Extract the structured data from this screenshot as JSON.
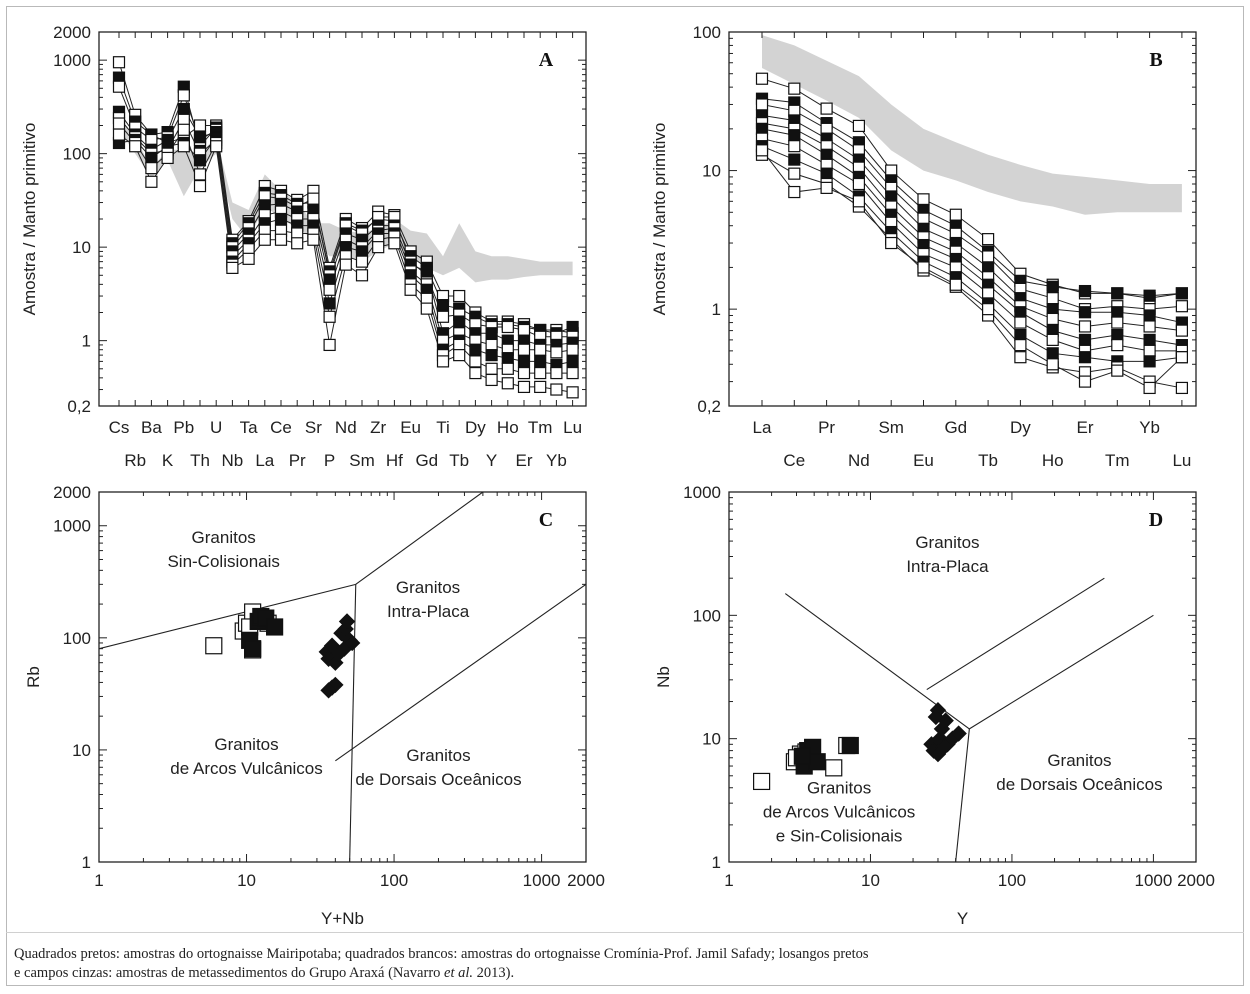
{
  "caption": {
    "line1": "Quadrados pretos: amostras do ortognaisse Mairipotaba; quadrados brancos: amostras do ortognaisse Cromínia-Prof. Jamil Safady; losangos pretos",
    "line2_pre": "e campos cinzas: amostras de metassedimentos do Grupo Araxá (Navarro ",
    "line2_italic": "et al.",
    "line2_post": " 2013)."
  },
  "colors": {
    "field": "#d3d3d3",
    "black_marker": "#111111",
    "white_marker": "#ffffff",
    "line": "#222222"
  },
  "chart_data": [
    {
      "panel": "A",
      "type": "line",
      "ylabel": "Amostra / Manto primitivo",
      "yscale": "log",
      "ylim": [
        0.2,
        2000
      ],
      "yticks": [
        "0,2",
        "1",
        "10",
        "100",
        "1000",
        "2000"
      ],
      "ytick_values": [
        0.2,
        1,
        10,
        100,
        1000,
        2000
      ],
      "categories": [
        "Cs",
        "Rb",
        "Ba",
        "K",
        "Pb",
        "Th",
        "U",
        "Nb",
        "Ta",
        "La",
        "Ce",
        "Pr",
        "Sr",
        "P",
        "Nd",
        "Sm",
        "Zr",
        "Hf",
        "Eu",
        "Gd",
        "Ti",
        "Tb",
        "Dy",
        "Y",
        "Ho",
        "Er",
        "Tm",
        "Yb",
        "Lu"
      ],
      "field_upper": [
        250,
        150,
        70,
        110,
        110,
        100,
        150,
        30,
        25,
        60,
        40,
        30,
        18,
        18,
        15,
        14,
        16,
        20,
        15,
        14,
        8,
        18,
        9,
        8,
        8,
        7.5,
        7,
        7,
        7
      ],
      "field_lower": [
        180,
        100,
        55,
        85,
        35,
        70,
        100,
        20,
        12,
        28,
        20,
        16,
        12,
        8,
        8,
        7,
        9,
        11,
        8,
        6,
        5,
        6,
        4.2,
        4.5,
        4.5,
        4.8,
        5,
        5,
        5
      ],
      "series": [
        {
          "marker": "white",
          "values": [
            950,
            260,
            160,
            130,
            150,
            200,
            200,
            12,
            19,
            45,
            40,
            32,
            40,
            6,
            20,
            16,
            24,
            22,
            9,
            7,
            3,
            3,
            2,
            1.6,
            1.6,
            1.5,
            1.3,
            1.3,
            1.2
          ]
        },
        {
          "marker": "black",
          "values": [
            650,
            220,
            160,
            170,
            520,
            120,
            190,
            11,
            18,
            38,
            36,
            29,
            30,
            5.5,
            18,
            15,
            20,
            19,
            8,
            6,
            2.4,
            2.2,
            1.8,
            1.5,
            1.5,
            1.4,
            1.3,
            1.2,
            1.4
          ]
        },
        {
          "marker": "white",
          "values": [
            520,
            190,
            140,
            150,
            420,
            140,
            180,
            10,
            16,
            35,
            33,
            27,
            33,
            5,
            17,
            14,
            21,
            21,
            7,
            5,
            1.8,
            1.9,
            1.5,
            1.4,
            1.4,
            1.3,
            1.1,
            1.1,
            1.1
          ]
        },
        {
          "marker": "black",
          "values": [
            280,
            160,
            110,
            140,
            300,
            150,
            170,
            9,
            14,
            28,
            29,
            24,
            24,
            4.5,
            14,
            12,
            17,
            17,
            6.5,
            5.5,
            1.2,
            1.6,
            1.2,
            1.2,
            1.0,
            1.0,
            0.9,
            0.9,
            0.95
          ]
        },
        {
          "marker": "white",
          "values": [
            240,
            150,
            100,
            110,
            230,
            100,
            140,
            8,
            12,
            22,
            24,
            20,
            20,
            3.5,
            12,
            10,
            15,
            16,
            5.5,
            4,
            1.0,
            1.2,
            1.0,
            0.9,
            0.8,
            0.8,
            0.8,
            0.75,
            0.8
          ]
        },
        {
          "marker": "black",
          "values": [
            130,
            140,
            90,
            120,
            130,
            85,
            150,
            7,
            11,
            18,
            20,
            17,
            17,
            2.5,
            10,
            9,
            14,
            14,
            5,
            3.5,
            0.8,
            1.0,
            0.8,
            0.7,
            0.65,
            0.6,
            0.6,
            0.55,
            0.6
          ]
        },
        {
          "marker": "white",
          "values": [
            210,
            130,
            70,
            100,
            180,
            60,
            130,
            6.5,
            9.5,
            15,
            15,
            14,
            14,
            1.8,
            8,
            7,
            12,
            13,
            4,
            2.8,
            0.7,
            0.9,
            0.6,
            0.5,
            0.5,
            0.45,
            0.45,
            0.45,
            0.45
          ]
        },
        {
          "marker": "white",
          "values": [
            160,
            120,
            50,
            90,
            120,
            45,
            120,
            6,
            7.5,
            12,
            12,
            11,
            12,
            0.9,
            6.5,
            5,
            10,
            11,
            3.5,
            2.2,
            0.6,
            0.7,
            0.45,
            0.38,
            0.35,
            0.32,
            0.32,
            0.3,
            0.28
          ]
        }
      ]
    },
    {
      "panel": "B",
      "type": "line",
      "ylabel": "Amostra / Manto primitivo",
      "yscale": "log",
      "ylim": [
        0.2,
        100
      ],
      "yticks": [
        "0,2",
        "1",
        "10",
        "100"
      ],
      "ytick_values": [
        0.2,
        1,
        10,
        100
      ],
      "categories": [
        "La",
        "Ce",
        "Pr",
        "Nd",
        "Sm",
        "Eu",
        "Gd",
        "Tb",
        "Dy",
        "Ho",
        "Er",
        "Tm",
        "Yb",
        "Lu"
      ],
      "field_upper": [
        95,
        80,
        62,
        48,
        30,
        20,
        16,
        13,
        11,
        9.5,
        9,
        8.5,
        8,
        8
      ],
      "field_lower": [
        55,
        42,
        32,
        24,
        14,
        10,
        8.5,
        7,
        6,
        5.5,
        4.8,
        5,
        5,
        5
      ],
      "series": [
        {
          "marker": "white",
          "values": [
            46,
            39,
            28,
            21,
            10,
            6.2,
            4.8,
            3.2,
            1.8,
            1.5,
            1.3,
            1.3,
            1.2,
            1.3
          ]
        },
        {
          "marker": "black",
          "values": [
            33,
            31,
            22,
            16,
            8.5,
            5.2,
            4.0,
            2.6,
            1.6,
            1.45,
            1.35,
            1.3,
            1.25,
            1.3
          ]
        },
        {
          "marker": "white",
          "values": [
            30,
            27,
            20,
            14,
            7.5,
            4.5,
            3.5,
            2.4,
            1.4,
            1.2,
            1.0,
            1.05,
            1.0,
            1.05
          ]
        },
        {
          "marker": "black",
          "values": [
            25,
            23,
            17,
            12,
            6.5,
            3.8,
            3.0,
            2.0,
            1.2,
            1.0,
            0.95,
            0.95,
            0.9,
            0.8
          ]
        },
        {
          "marker": "white",
          "values": [
            22,
            20,
            15,
            10.5,
            5.5,
            3.3,
            2.6,
            1.7,
            1.05,
            0.85,
            0.75,
            0.8,
            0.75,
            0.7
          ]
        },
        {
          "marker": "black",
          "values": [
            20,
            18,
            13,
            9,
            4.8,
            2.9,
            2.3,
            1.5,
            0.95,
            0.7,
            0.6,
            0.65,
            0.6,
            0.55
          ]
        },
        {
          "marker": "white",
          "values": [
            17,
            15,
            11,
            8,
            4.2,
            2.5,
            2.0,
            1.3,
            0.8,
            0.6,
            0.5,
            0.55,
            0.5,
            0.5
          ]
        },
        {
          "marker": "black",
          "values": [
            15,
            12,
            9.5,
            6.5,
            3.6,
            2.2,
            1.7,
            1.1,
            0.65,
            0.48,
            0.45,
            0.42,
            0.42,
            0.45
          ]
        },
        {
          "marker": "white",
          "values": [
            13,
            9.5,
            8,
            5.5,
            3.2,
            1.9,
            1.45,
            0.9,
            0.45,
            0.38,
            0.35,
            0.38,
            0.3,
            0.27
          ]
        },
        {
          "marker": "white",
          "values": [
            14,
            7,
            7.5,
            6,
            3.0,
            2.0,
            1.5,
            1.0,
            0.55,
            0.4,
            0.3,
            0.36,
            0.27,
            0.45
          ]
        }
      ]
    },
    {
      "panel": "C",
      "type": "scatter",
      "xlabel": "Y+Nb",
      "ylabel": "Rb",
      "xscale": "log",
      "yscale": "log",
      "xlim": [
        1,
        2000
      ],
      "ylim": [
        1,
        2000
      ],
      "xticks": [
        "1",
        "10",
        "100",
        "1000",
        "2000"
      ],
      "xtick_values": [
        1,
        10,
        100,
        1000,
        2000
      ],
      "yticks": [
        "1",
        "10",
        "100",
        "1000",
        "2000"
      ],
      "ytick_values": [
        1,
        10,
        100,
        1000,
        2000
      ],
      "boundaries": [
        [
          [
            1,
            80
          ],
          [
            55,
            300
          ]
        ],
        [
          [
            55,
            300
          ],
          [
            50,
            1
          ]
        ],
        [
          [
            55,
            300
          ],
          [
            400,
            2000
          ]
        ],
        [
          [
            40,
            8
          ],
          [
            2000,
            300
          ]
        ]
      ],
      "field_labels": [
        {
          "lines": [
            "Granitos",
            "Sin-Colisionais"
          ],
          "x": 7,
          "y": 700
        },
        {
          "lines": [
            "Granitos",
            "Intra-Placa"
          ],
          "x": 170,
          "y": 250
        },
        {
          "lines": [
            "Granitos",
            "de Arcos Vulcânicos"
          ],
          "x": 10,
          "y": 10
        },
        {
          "lines": [
            "Granitos",
            "de Dorsais Oceânicos"
          ],
          "x": 200,
          "y": 8
        }
      ],
      "series": [
        {
          "marker": "square-white",
          "points": [
            [
              6,
              85
            ],
            [
              9.5,
              115
            ],
            [
              10,
              135
            ],
            [
              11,
              170
            ],
            [
              11,
              78
            ],
            [
              14,
              135
            ],
            [
              10.5,
              125
            ]
          ]
        },
        {
          "marker": "square-black",
          "points": [
            [
              10.5,
              95
            ],
            [
              12,
              140
            ],
            [
              12.5,
              155
            ],
            [
              13.5,
              150
            ],
            [
              15.5,
              125
            ],
            [
              11,
              80
            ]
          ]
        },
        {
          "marker": "diamond-black",
          "points": [
            [
              35,
              75
            ],
            [
              36,
              65
            ],
            [
              38,
              85
            ],
            [
              40,
              60
            ],
            [
              42,
              72
            ],
            [
              44,
              110
            ],
            [
              46,
              80
            ],
            [
              47,
              120
            ],
            [
              48,
              140
            ],
            [
              50,
              95
            ],
            [
              52,
              90
            ],
            [
              38,
              36
            ],
            [
              40,
              38
            ],
            [
              36,
              34
            ]
          ]
        }
      ]
    },
    {
      "panel": "D",
      "type": "scatter",
      "xlabel": "Y",
      "ylabel": "Nb",
      "xscale": "log",
      "yscale": "log",
      "xlim": [
        1,
        2000
      ],
      "ylim": [
        1,
        1000
      ],
      "xticks": [
        "1",
        "10",
        "100",
        "1000",
        "2000"
      ],
      "xtick_values": [
        1,
        10,
        100,
        1000,
        2000
      ],
      "yticks": [
        "1",
        "10",
        "100",
        "1000"
      ],
      "ytick_values": [
        1,
        10,
        100,
        1000
      ],
      "boundaries": [
        [
          [
            2.5,
            150
          ],
          [
            50,
            12
          ]
        ],
        [
          [
            50,
            12
          ],
          [
            40,
            1
          ]
        ],
        [
          [
            50,
            12
          ],
          [
            1000,
            100
          ]
        ],
        [
          [
            25,
            25
          ],
          [
            450,
            200
          ]
        ]
      ],
      "field_labels": [
        {
          "lines": [
            "Granitos",
            "Intra-Placa"
          ],
          "x": 35,
          "y": 350
        },
        {
          "lines": [
            "Granitos",
            "de Arcos Vulcânicos",
            "e Sin-Colisionais"
          ],
          "x": 6,
          "y": 3.6
        },
        {
          "lines": [
            "Granitos",
            "de Dorsais Oceânicos"
          ],
          "x": 300,
          "y": 6
        }
      ],
      "series": [
        {
          "marker": "square-white",
          "points": [
            [
              1.7,
              4.5
            ],
            [
              2.9,
              6.5
            ],
            [
              3.2,
              7.5
            ],
            [
              3.5,
              7.8
            ],
            [
              5.5,
              5.8
            ],
            [
              6.8,
              8.8
            ],
            [
              3.0,
              7.0
            ]
          ]
        },
        {
          "marker": "square-black",
          "points": [
            [
              3.4,
              6.0
            ],
            [
              3.6,
              8.0
            ],
            [
              3.9,
              8.5
            ],
            [
              4.2,
              6.5
            ],
            [
              7.2,
              8.8
            ],
            [
              3.3,
              7.2
            ]
          ]
        },
        {
          "marker": "diamond-black",
          "points": [
            [
              27,
              9
            ],
            [
              28,
              8
            ],
            [
              30,
              17
            ],
            [
              31,
              10
            ],
            [
              32,
              12
            ],
            [
              34,
              14
            ],
            [
              35,
              9
            ],
            [
              38,
              10
            ],
            [
              42,
              11
            ],
            [
              30,
              7.5
            ],
            [
              33,
              8.5
            ],
            [
              29,
              15
            ]
          ]
        }
      ]
    }
  ]
}
